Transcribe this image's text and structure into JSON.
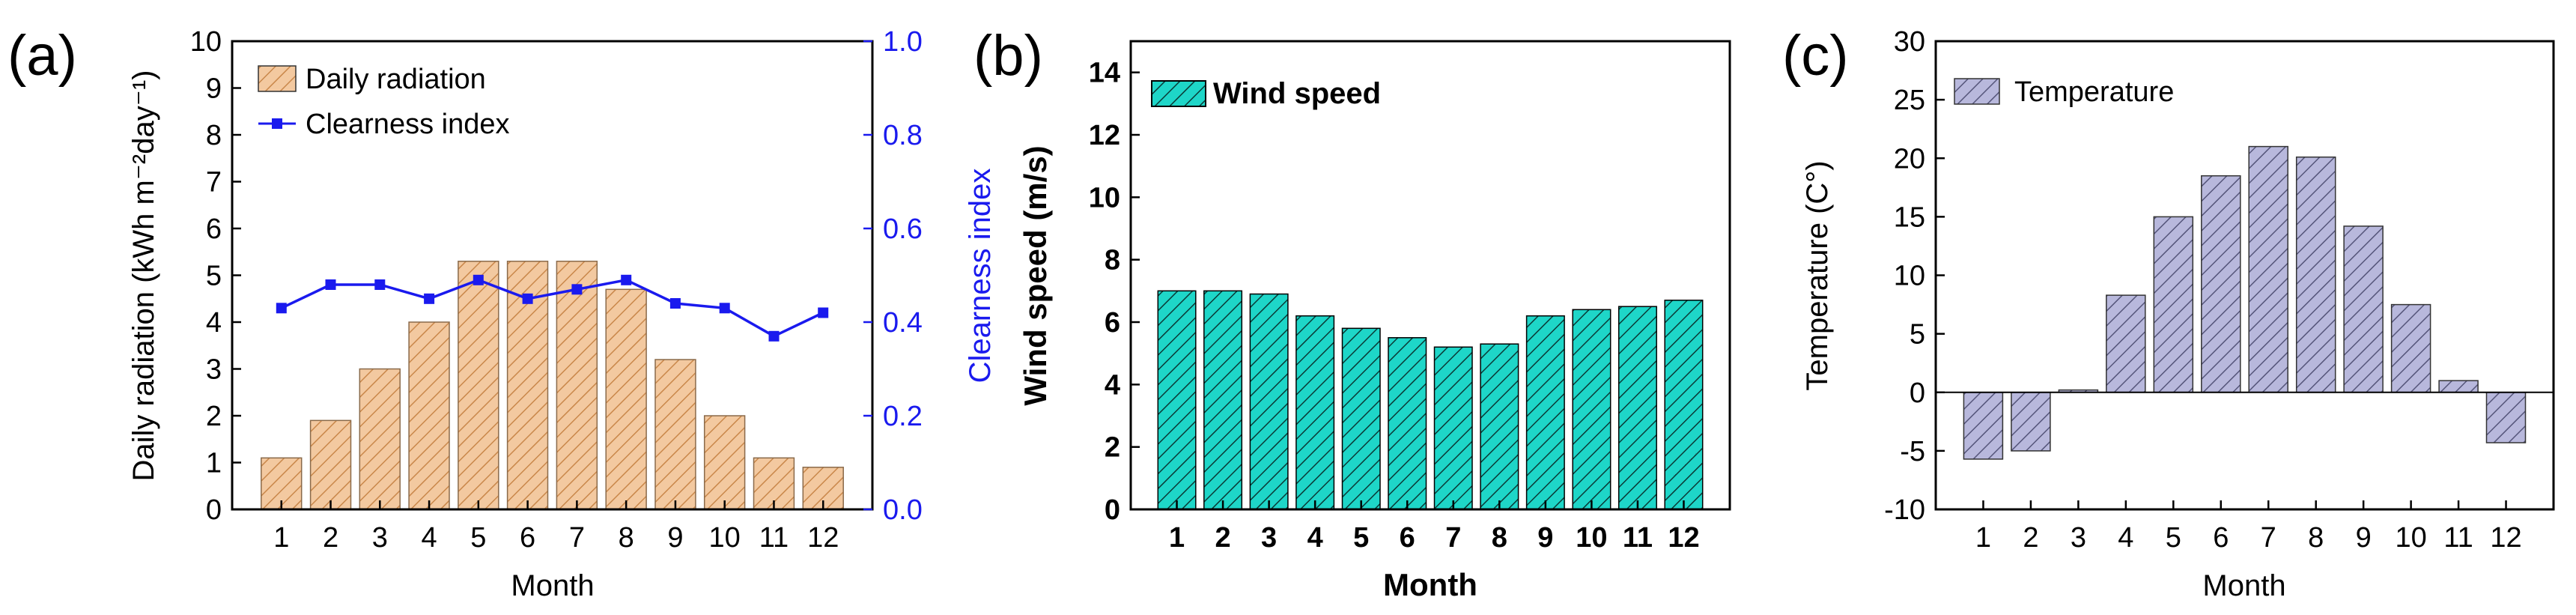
{
  "chart_data": [
    {
      "panel_label": "(a)",
      "type": "bar",
      "categories": [
        "1",
        "2",
        "3",
        "4",
        "5",
        "6",
        "7",
        "8",
        "9",
        "10",
        "11",
        "12"
      ],
      "xlabel": "Month",
      "ylabel": "Daily radiation (kWh m⁻²day⁻¹)",
      "y2label": "Clearness index",
      "ylim": [
        0,
        10
      ],
      "y2lim": [
        0.0,
        1.0
      ],
      "y_ticks": [
        "0",
        "1",
        "2",
        "3",
        "4",
        "5",
        "6",
        "7",
        "8",
        "9",
        "10"
      ],
      "y2_ticks": [
        "0.0",
        "0.2",
        "0.4",
        "0.6",
        "0.8",
        "1.0"
      ],
      "legend_position": "top-left",
      "series": [
        {
          "name": "Daily radiation",
          "type": "bar",
          "axis": "left",
          "color": "#f3c9a0",
          "hatch": "#c9874a",
          "hatch_style": "diagonal",
          "values": [
            1.1,
            1.9,
            3.0,
            4.0,
            5.3,
            5.3,
            5.3,
            4.7,
            3.2,
            2.0,
            1.1,
            0.9
          ]
        },
        {
          "name": "Clearness index",
          "type": "line",
          "axis": "right",
          "color": "#1a1aee",
          "values": [
            0.43,
            0.48,
            0.48,
            0.45,
            0.49,
            0.45,
            0.47,
            0.49,
            0.44,
            0.43,
            0.37,
            0.42
          ]
        }
      ]
    },
    {
      "panel_label": "(b)",
      "type": "bar",
      "categories": [
        "1",
        "2",
        "3",
        "4",
        "5",
        "6",
        "7",
        "8",
        "9",
        "10",
        "11",
        "12"
      ],
      "xlabel": "Month",
      "ylabel": "Wind speed (m/s)",
      "ylim": [
        0,
        15
      ],
      "y_ticks": [
        "0",
        "2",
        "4",
        "6",
        "8",
        "10",
        "12",
        "14"
      ],
      "legend_position": "top-left",
      "series": [
        {
          "name": "Wind speed",
          "color": "#1ed6c8",
          "hatch": "#0a3a36",
          "hatch_style": "diagonal",
          "values": [
            7.0,
            7.0,
            6.9,
            6.2,
            5.8,
            5.5,
            5.2,
            5.3,
            6.2,
            6.4,
            6.5,
            6.7
          ]
        }
      ]
    },
    {
      "panel_label": "(c)",
      "type": "bar",
      "categories": [
        "1",
        "2",
        "3",
        "4",
        "5",
        "6",
        "7",
        "8",
        "9",
        "10",
        "11",
        "12"
      ],
      "xlabel": "Month",
      "ylabel": "Temperature (C°)",
      "ylim": [
        -10,
        30
      ],
      "y_ticks": [
        "-10",
        "-5",
        "0",
        "5",
        "10",
        "15",
        "20",
        "25",
        "30"
      ],
      "legend_position": "top-left",
      "series": [
        {
          "name": "Temperature",
          "color": "#b8b8dc",
          "hatch": "#55557a",
          "hatch_style": "diagonal",
          "values": [
            -5.7,
            -5.0,
            0.2,
            8.3,
            15.0,
            18.5,
            21.0,
            20.1,
            14.2,
            7.5,
            1.0,
            -4.3
          ]
        }
      ]
    }
  ]
}
